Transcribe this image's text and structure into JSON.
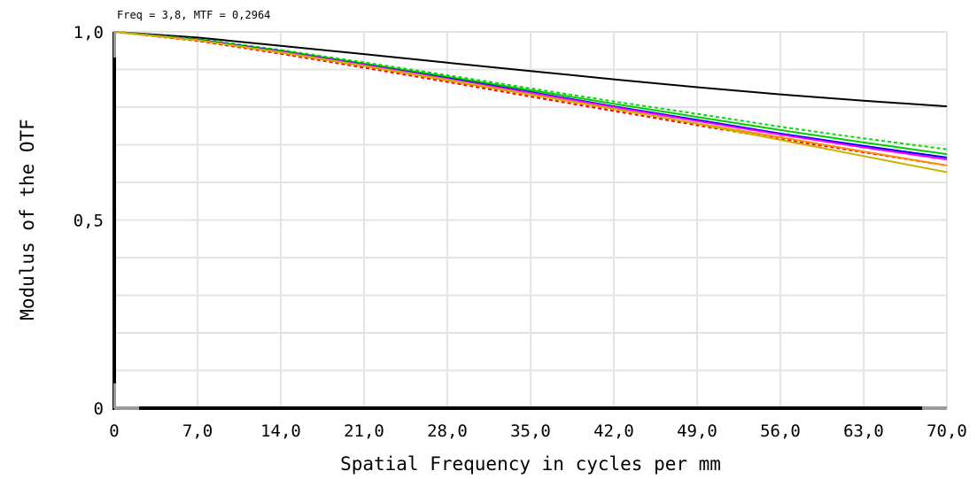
{
  "readout": "Freq = 3,8, MTF = 0,2964",
  "chart_data": {
    "type": "line",
    "xlabel": "Spatial Frequency in cycles per mm",
    "ylabel": "Modulus of the OTF",
    "xlim": [
      0,
      70
    ],
    "ylim": [
      0,
      1
    ],
    "x_ticks": [
      {
        "value": 0,
        "label": "0"
      },
      {
        "value": 7,
        "label": "7,0"
      },
      {
        "value": 14,
        "label": "14,0"
      },
      {
        "value": 21,
        "label": "21,0"
      },
      {
        "value": 28,
        "label": "28,0"
      },
      {
        "value": 35,
        "label": "35,0"
      },
      {
        "value": 42,
        "label": "42,0"
      },
      {
        "value": 49,
        "label": "49,0"
      },
      {
        "value": 56,
        "label": "56,0"
      },
      {
        "value": 63,
        "label": "63,0"
      },
      {
        "value": 70,
        "label": "70,0"
      }
    ],
    "y_ticks": [
      {
        "value": 0,
        "label": "0"
      },
      {
        "value": 0.5,
        "label": "0,5"
      },
      {
        "value": 1,
        "label": "1,0"
      }
    ],
    "grid": true,
    "x": [
      0,
      7,
      14,
      21,
      28,
      35,
      42,
      49,
      56,
      63,
      70
    ],
    "series": [
      {
        "color": "#000000",
        "dashed": false,
        "values": [
          1.0,
          0.985,
          0.963,
          0.941,
          0.918,
          0.896,
          0.874,
          0.853,
          0.834,
          0.817,
          0.802
        ]
      },
      {
        "color": "#00dd00",
        "dashed": true,
        "values": [
          1.0,
          0.981,
          0.952,
          0.919,
          0.885,
          0.85,
          0.815,
          0.782,
          0.748,
          0.717,
          0.688
        ]
      },
      {
        "color": "#00cc00",
        "dashed": false,
        "values": [
          1.0,
          0.98,
          0.95,
          0.916,
          0.881,
          0.845,
          0.809,
          0.774,
          0.739,
          0.706,
          0.675
        ]
      },
      {
        "color": "#0000ff",
        "dashed": false,
        "values": [
          1.0,
          0.979,
          0.948,
          0.913,
          0.877,
          0.84,
          0.802,
          0.766,
          0.73,
          0.697,
          0.666
        ]
      },
      {
        "color": "#ff00ff",
        "dashed": false,
        "values": [
          1.0,
          0.978,
          0.947,
          0.912,
          0.875,
          0.838,
          0.8,
          0.763,
          0.727,
          0.693,
          0.661
        ]
      },
      {
        "color": "#ff0000",
        "dashed": true,
        "values": [
          1.0,
          0.976,
          0.942,
          0.905,
          0.867,
          0.828,
          0.79,
          0.752,
          0.715,
          0.68,
          0.645
        ]
      },
      {
        "color": "#ff8c00",
        "dashed": false,
        "values": [
          1.0,
          0.978,
          0.945,
          0.909,
          0.871,
          0.833,
          0.795,
          0.757,
          0.72,
          0.682,
          0.645
        ]
      },
      {
        "color": "#c8b400",
        "dashed": false,
        "values": [
          1.0,
          0.978,
          0.946,
          0.91,
          0.873,
          0.834,
          0.796,
          0.756,
          0.713,
          0.67,
          0.627
        ]
      }
    ]
  }
}
